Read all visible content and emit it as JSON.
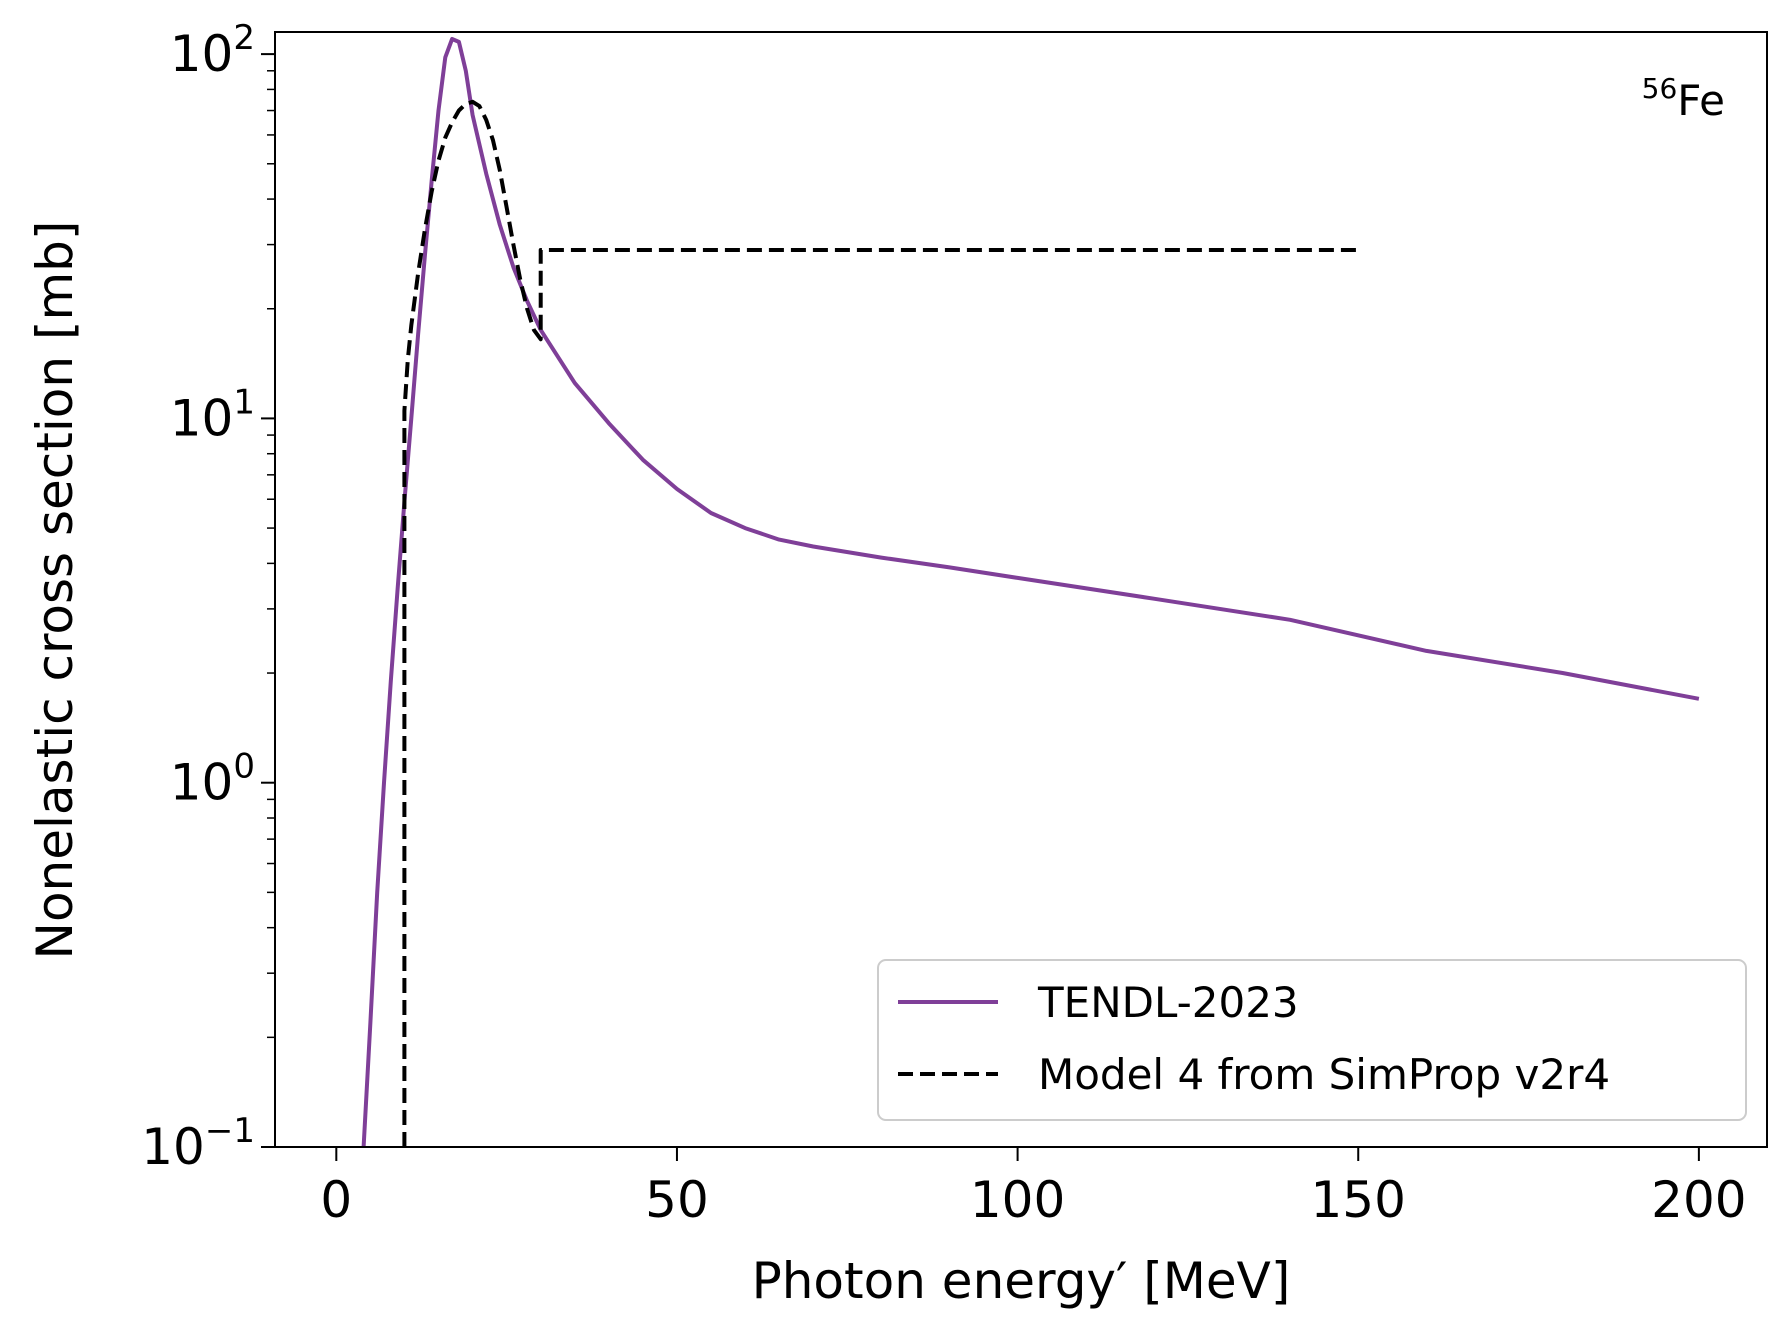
{
  "chart_data": {
    "type": "line",
    "title": "",
    "annotation": {
      "mass_number": "56",
      "element": "Fe"
    },
    "xlabel": "Photon energy′ [MeV]",
    "ylabel": "Nonelastic cross section [mb]",
    "xlim": [
      -9,
      210
    ],
    "ylim": [
      0.1,
      115
    ],
    "yscale": "log",
    "x_ticks": [
      0,
      50,
      100,
      150,
      200
    ],
    "y_ticks": [
      {
        "value": 0.1,
        "base": "10",
        "exp": "−1"
      },
      {
        "value": 1,
        "base": "10",
        "exp": "0"
      },
      {
        "value": 10,
        "base": "10",
        "exp": "1"
      },
      {
        "value": 100,
        "base": "10",
        "exp": "2"
      }
    ],
    "grid": false,
    "legend_position": "lower-right",
    "series": [
      {
        "name": "TENDL-2023",
        "color": "#7f3f98",
        "style": "solid",
        "x": [
          4,
          5,
          6,
          7,
          8,
          9,
          10,
          11,
          12,
          13,
          14,
          15,
          16,
          17,
          18,
          19,
          20,
          22,
          24,
          26,
          28,
          30,
          35,
          40,
          45,
          50,
          55,
          60,
          65,
          70,
          80,
          90,
          100,
          120,
          140,
          160,
          180,
          200
        ],
        "y": [
          0.1,
          0.22,
          0.5,
          1.0,
          1.9,
          3.4,
          5.9,
          10.0,
          17.0,
          28.0,
          45.0,
          70.0,
          98.0,
          110.0,
          108.0,
          90.0,
          68.0,
          47.0,
          34.0,
          26.0,
          21.0,
          17.5,
          12.5,
          9.7,
          7.7,
          6.4,
          5.5,
          5.0,
          4.65,
          4.45,
          4.15,
          3.9,
          3.65,
          3.2,
          2.8,
          2.3,
          2.0,
          1.7
        ]
      },
      {
        "name": "Model 4 from SimProp v2r4",
        "color": "#000000",
        "style": "dashed",
        "x": [
          10,
          10,
          10.5,
          11,
          12,
          13,
          14,
          15,
          16,
          17,
          18,
          19,
          20,
          21,
          22,
          23,
          24,
          25,
          26,
          27,
          28,
          29,
          30,
          30,
          150
        ],
        "y": [
          0.1,
          10.5,
          14.5,
          18.0,
          25.0,
          33.0,
          42.0,
          51.0,
          59.0,
          65.0,
          70.0,
          73.0,
          74.0,
          72.0,
          66.0,
          58.0,
          48.0,
          38.0,
          30.0,
          24.0,
          20.0,
          17.5,
          16.5,
          29.0,
          29.0
        ]
      }
    ]
  }
}
